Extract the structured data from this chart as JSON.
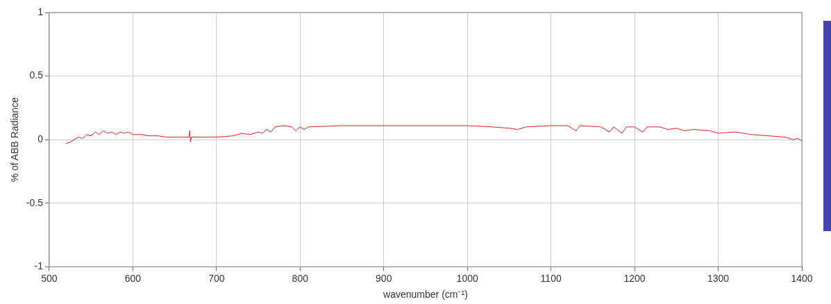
{
  "chart_data": {
    "type": "line",
    "xlabel": "wavenumber (cm⁻¹)",
    "ylabel": "% of ABB Radiance",
    "x": [
      520,
      525,
      530,
      535,
      540,
      545,
      550,
      555,
      560,
      565,
      570,
      575,
      580,
      585,
      590,
      595,
      600,
      610,
      620,
      630,
      640,
      660,
      667,
      668,
      669,
      670,
      690,
      700,
      720,
      730,
      740,
      750,
      755,
      760,
      765,
      770,
      780,
      790,
      795,
      800,
      805,
      810,
      850,
      900,
      950,
      1000,
      1030,
      1050,
      1060,
      1070,
      1100,
      1120,
      1130,
      1135,
      1160,
      1170,
      1175,
      1185,
      1190,
      1200,
      1210,
      1215,
      1230,
      1240,
      1250,
      1260,
      1270,
      1290,
      1300,
      1320,
      1330,
      1340,
      1360,
      1380,
      1390,
      1395,
      1400
    ],
    "series": [
      {
        "color": "#dd2020",
        "values": [
          -0.03,
          -0.02,
          0.0,
          0.02,
          0.01,
          0.04,
          0.03,
          0.06,
          0.04,
          0.07,
          0.05,
          0.06,
          0.04,
          0.06,
          0.05,
          0.06,
          0.04,
          0.04,
          0.03,
          0.03,
          0.02,
          0.02,
          0.02,
          0.07,
          -0.02,
          0.02,
          0.02,
          0.02,
          0.03,
          0.05,
          0.04,
          0.06,
          0.05,
          0.08,
          0.06,
          0.1,
          0.11,
          0.1,
          0.07,
          0.1,
          0.08,
          0.1,
          0.11,
          0.11,
          0.11,
          0.11,
          0.1,
          0.09,
          0.08,
          0.1,
          0.11,
          0.11,
          0.07,
          0.11,
          0.1,
          0.06,
          0.1,
          0.05,
          0.1,
          0.1,
          0.06,
          0.1,
          0.1,
          0.08,
          0.09,
          0.07,
          0.08,
          0.07,
          0.05,
          0.06,
          0.05,
          0.04,
          0.03,
          0.02,
          0.0,
          0.01,
          -0.01
        ]
      }
    ],
    "xlim": [
      500,
      1400
    ],
    "xticks": [
      500,
      600,
      700,
      800,
      900,
      1000,
      1100,
      1200,
      1300,
      1400
    ],
    "ylim": [
      -1,
      1
    ],
    "yticks": [
      -1,
      -0.5,
      0,
      0.5,
      1
    ],
    "grid": true,
    "legend": false,
    "marker": "none",
    "line_style": "solid"
  }
}
